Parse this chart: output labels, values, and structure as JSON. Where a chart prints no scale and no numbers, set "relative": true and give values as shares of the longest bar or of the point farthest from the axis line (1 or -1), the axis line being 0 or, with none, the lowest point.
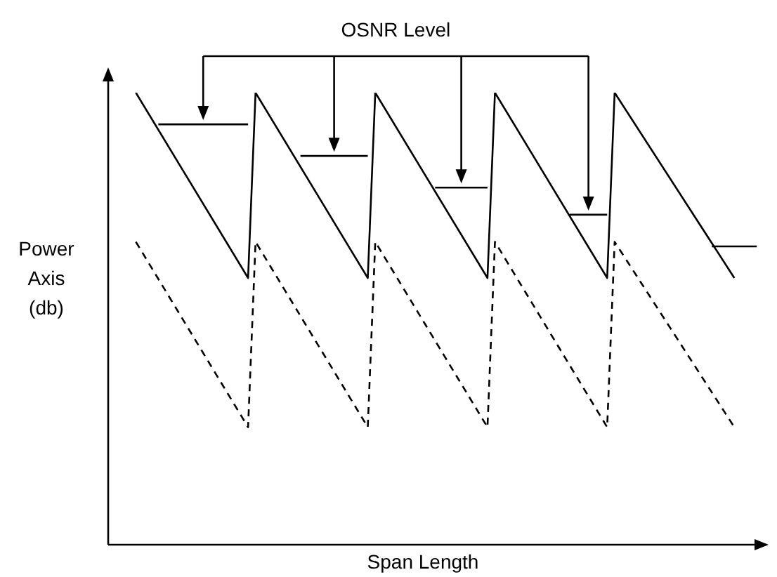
{
  "chart_data": {
    "type": "line",
    "relative": true,
    "xlabel": "Span Length",
    "ylabel": "Power Axis (db)",
    "annotations": [
      "OSNR Level"
    ],
    "grid": false,
    "legend": false,
    "marker": "none",
    "categories": [
      null,
      null,
      null,
      null,
      null,
      null,
      null,
      null,
      null,
      null,
      null,
      null,
      null,
      null,
      null,
      null,
      null,
      null,
      null,
      null,
      null,
      null,
      null,
      null,
      null,
      null,
      null,
      null,
      null,
      null,
      null,
      null,
      null,
      null,
      null,
      null,
      null,
      null,
      null,
      null,
      null,
      null,
      null,
      null,
      null,
      null,
      null,
      null,
      null,
      null,
      null,
      null,
      null,
      null,
      null,
      null,
      null,
      null,
      null,
      null,
      null,
      null,
      null,
      null,
      null,
      null,
      null,
      null,
      null,
      null,
      null,
      null,
      null,
      null,
      null,
      null,
      null,
      null,
      null,
      null,
      null,
      null,
      null,
      null,
      null,
      null,
      null,
      null
    ],
    "series": [
      {
        "color": "#000000",
        "line_style": "solid",
        "values": [
          null,
          null,
          null,
          1,
          null,
          null,
          null,
          null,
          null,
          null,
          null,
          null,
          null,
          null,
          null,
          null,
          null,
          null,
          0.59,
          1,
          null,
          null,
          null,
          null,
          null,
          null,
          null,
          null,
          null,
          null,
          null,
          null,
          null,
          null,
          0.59,
          1,
          null,
          null,
          null,
          null,
          null,
          null,
          null,
          null,
          null,
          null,
          null,
          null,
          null,
          null,
          0.59,
          1,
          null,
          null,
          null,
          null,
          null,
          null,
          null,
          null,
          null,
          null,
          null,
          null,
          null,
          null,
          0.59,
          1,
          null,
          null,
          null,
          null,
          null,
          null,
          null,
          null,
          null,
          null,
          null,
          null,
          null,
          null,
          null,
          0.59,
          null,
          null,
          null,
          null
        ]
      },
      {
        "color": "#000000",
        "line_style": "dashed",
        "values": [
          null,
          null,
          null,
          0.67,
          null,
          null,
          null,
          null,
          null,
          null,
          null,
          null,
          null,
          null,
          null,
          null,
          null,
          null,
          0.26,
          0.67,
          null,
          null,
          null,
          null,
          null,
          null,
          null,
          null,
          null,
          null,
          null,
          null,
          null,
          null,
          0.26,
          0.67,
          null,
          null,
          null,
          null,
          null,
          null,
          null,
          null,
          null,
          null,
          null,
          null,
          null,
          null,
          0.26,
          0.67,
          null,
          null,
          null,
          null,
          null,
          null,
          null,
          null,
          null,
          null,
          null,
          null,
          null,
          null,
          0.26,
          0.67,
          null,
          null,
          null,
          null,
          null,
          null,
          null,
          null,
          null,
          null,
          null,
          null,
          null,
          null,
          null,
          0.26,
          null,
          null,
          null,
          null
        ]
      },
      {
        "color": "#000000",
        "line_style": "solid",
        "values": [
          null,
          null,
          null,
          null,
          null,
          null,
          0.93,
          null,
          null,
          null,
          null,
          null,
          null,
          null,
          null,
          null,
          null,
          null,
          0.93,
          null,
          null,
          null,
          null,
          null,
          null,
          null,
          null,
          null,
          null,
          null,
          null,
          null,
          null,
          null,
          null,
          null,
          null,
          null,
          null,
          null,
          null,
          null,
          null,
          null,
          null,
          null,
          null,
          null,
          null,
          null,
          null,
          null,
          null,
          null,
          null,
          null,
          null,
          null,
          null,
          null,
          null,
          null,
          null,
          null,
          null,
          null,
          null,
          null,
          null,
          null,
          null,
          null,
          null,
          null,
          null,
          null,
          null,
          null,
          null,
          null,
          null,
          null,
          null,
          null,
          null,
          null,
          null,
          null
        ]
      },
      {
        "color": "#000000",
        "line_style": "solid",
        "values": [
          null,
          null,
          null,
          null,
          null,
          null,
          null,
          null,
          null,
          null,
          null,
          null,
          null,
          null,
          null,
          null,
          null,
          null,
          null,
          null,
          null,
          null,
          null,
          null,
          null,
          0.86,
          null,
          null,
          null,
          null,
          null,
          null,
          null,
          null,
          0.86,
          null,
          null,
          null,
          null,
          null,
          null,
          null,
          null,
          null,
          null,
          null,
          null,
          null,
          null,
          null,
          null,
          null,
          null,
          null,
          null,
          null,
          null,
          null,
          null,
          null,
          null,
          null,
          null,
          null,
          null,
          null,
          null,
          null,
          null,
          null,
          null,
          null,
          null,
          null,
          null,
          null,
          null,
          null,
          null,
          null,
          null,
          null,
          null,
          null,
          null,
          null,
          null,
          null
        ]
      },
      {
        "color": "#000000",
        "line_style": "solid",
        "values": [
          null,
          null,
          null,
          null,
          null,
          null,
          null,
          null,
          null,
          null,
          null,
          null,
          null,
          null,
          null,
          null,
          null,
          null,
          null,
          null,
          null,
          null,
          null,
          null,
          null,
          null,
          null,
          null,
          null,
          null,
          null,
          null,
          null,
          null,
          null,
          null,
          null,
          null,
          null,
          null,
          null,
          null,
          null,
          0.79,
          null,
          null,
          null,
          null,
          null,
          null,
          0.79,
          null,
          null,
          null,
          null,
          null,
          null,
          null,
          null,
          null,
          null,
          null,
          null,
          null,
          null,
          null,
          null,
          null,
          null,
          null,
          null,
          null,
          null,
          null,
          null,
          null,
          null,
          null,
          null,
          null,
          null,
          null,
          null,
          null,
          null,
          null,
          null,
          null
        ]
      },
      {
        "color": "#000000",
        "line_style": "solid",
        "values": [
          null,
          null,
          null,
          null,
          null,
          null,
          null,
          null,
          null,
          null,
          null,
          null,
          null,
          null,
          null,
          null,
          null,
          null,
          null,
          null,
          null,
          null,
          null,
          null,
          null,
          null,
          null,
          null,
          null,
          null,
          null,
          null,
          null,
          null,
          null,
          null,
          null,
          null,
          null,
          null,
          null,
          null,
          null,
          null,
          null,
          null,
          null,
          null,
          null,
          null,
          null,
          null,
          null,
          null,
          null,
          null,
          null,
          null,
          null,
          null,
          null,
          0.73,
          null,
          null,
          null,
          null,
          0.73,
          null,
          null,
          null,
          null,
          null,
          null,
          null,
          null,
          null,
          null,
          null,
          null,
          null,
          null,
          null,
          null,
          null,
          null,
          null,
          null,
          null
        ]
      },
      {
        "color": "#000000",
        "line_style": "solid",
        "values": [
          null,
          null,
          null,
          null,
          null,
          null,
          null,
          null,
          null,
          null,
          null,
          null,
          null,
          null,
          null,
          null,
          null,
          null,
          null,
          null,
          null,
          null,
          null,
          null,
          null,
          null,
          null,
          null,
          null,
          null,
          null,
          null,
          null,
          null,
          null,
          null,
          null,
          null,
          null,
          null,
          null,
          null,
          null,
          null,
          null,
          null,
          null,
          null,
          null,
          null,
          null,
          null,
          null,
          null,
          null,
          null,
          null,
          null,
          null,
          null,
          null,
          null,
          null,
          null,
          null,
          null,
          null,
          null,
          null,
          null,
          null,
          null,
          null,
          null,
          null,
          null,
          null,
          null,
          null,
          null,
          0.66,
          null,
          null,
          null,
          null,
          null,
          0.66,
          null
        ]
      }
    ]
  }
}
